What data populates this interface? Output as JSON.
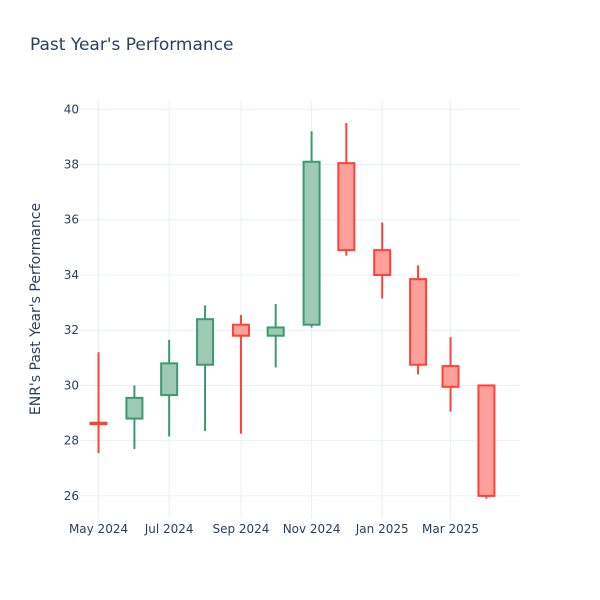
{
  "chart_data": {
    "type": "candlestick",
    "title": "Past Year's Performance",
    "ylabel": "ENR's Past Year's Performance",
    "xlabel": "",
    "ylim": [
      25.2,
      40.3
    ],
    "yticks": [
      26,
      28,
      30,
      32,
      34,
      36,
      38,
      40
    ],
    "xticks": [
      {
        "label": "May 2024",
        "date": "2024-05-01"
      },
      {
        "label": "Jul 2024",
        "date": "2024-07-01"
      },
      {
        "label": "Sep 2024",
        "date": "2024-09-01"
      },
      {
        "label": "Nov 2024",
        "date": "2024-11-01"
      },
      {
        "label": "Jan 2025",
        "date": "2025-01-01"
      },
      {
        "label": "Mar 2025",
        "date": "2025-03-01"
      }
    ],
    "xrange": [
      "2024-04-15",
      "2025-04-30"
    ],
    "grid": true,
    "increasing_color": "#3d9970",
    "increasing_fill": "#9ec9b4",
    "decreasing_color": "#ff4136",
    "decreasing_fill": "#ffa09b",
    "candles": [
      {
        "date": "2024-05-01",
        "open": 28.65,
        "high": 31.2,
        "low": 27.55,
        "close": 28.6
      },
      {
        "date": "2024-06-01",
        "open": 28.8,
        "high": 30.0,
        "low": 27.7,
        "close": 29.55
      },
      {
        "date": "2024-07-01",
        "open": 29.65,
        "high": 31.65,
        "low": 28.15,
        "close": 30.8
      },
      {
        "date": "2024-08-01",
        "open": 30.75,
        "high": 32.9,
        "low": 28.35,
        "close": 32.4
      },
      {
        "date": "2024-09-01",
        "open": 32.2,
        "high": 32.55,
        "low": 28.25,
        "close": 31.8
      },
      {
        "date": "2024-10-01",
        "open": 31.8,
        "high": 32.95,
        "low": 30.65,
        "close": 32.1
      },
      {
        "date": "2024-11-01",
        "open": 32.2,
        "high": 39.2,
        "low": 32.1,
        "close": 38.1
      },
      {
        "date": "2024-12-01",
        "open": 38.05,
        "high": 39.5,
        "low": 34.7,
        "close": 34.9
      },
      {
        "date": "2025-01-01",
        "open": 34.9,
        "high": 35.9,
        "low": 33.15,
        "close": 34.0
      },
      {
        "date": "2025-02-01",
        "open": 33.85,
        "high": 34.35,
        "low": 30.4,
        "close": 30.75
      },
      {
        "date": "2025-03-01",
        "open": 30.7,
        "high": 31.75,
        "low": 29.05,
        "close": 29.95
      },
      {
        "date": "2025-04-01",
        "open": 30.0,
        "high": 30.0,
        "low": 25.9,
        "close": 26.0
      }
    ]
  }
}
